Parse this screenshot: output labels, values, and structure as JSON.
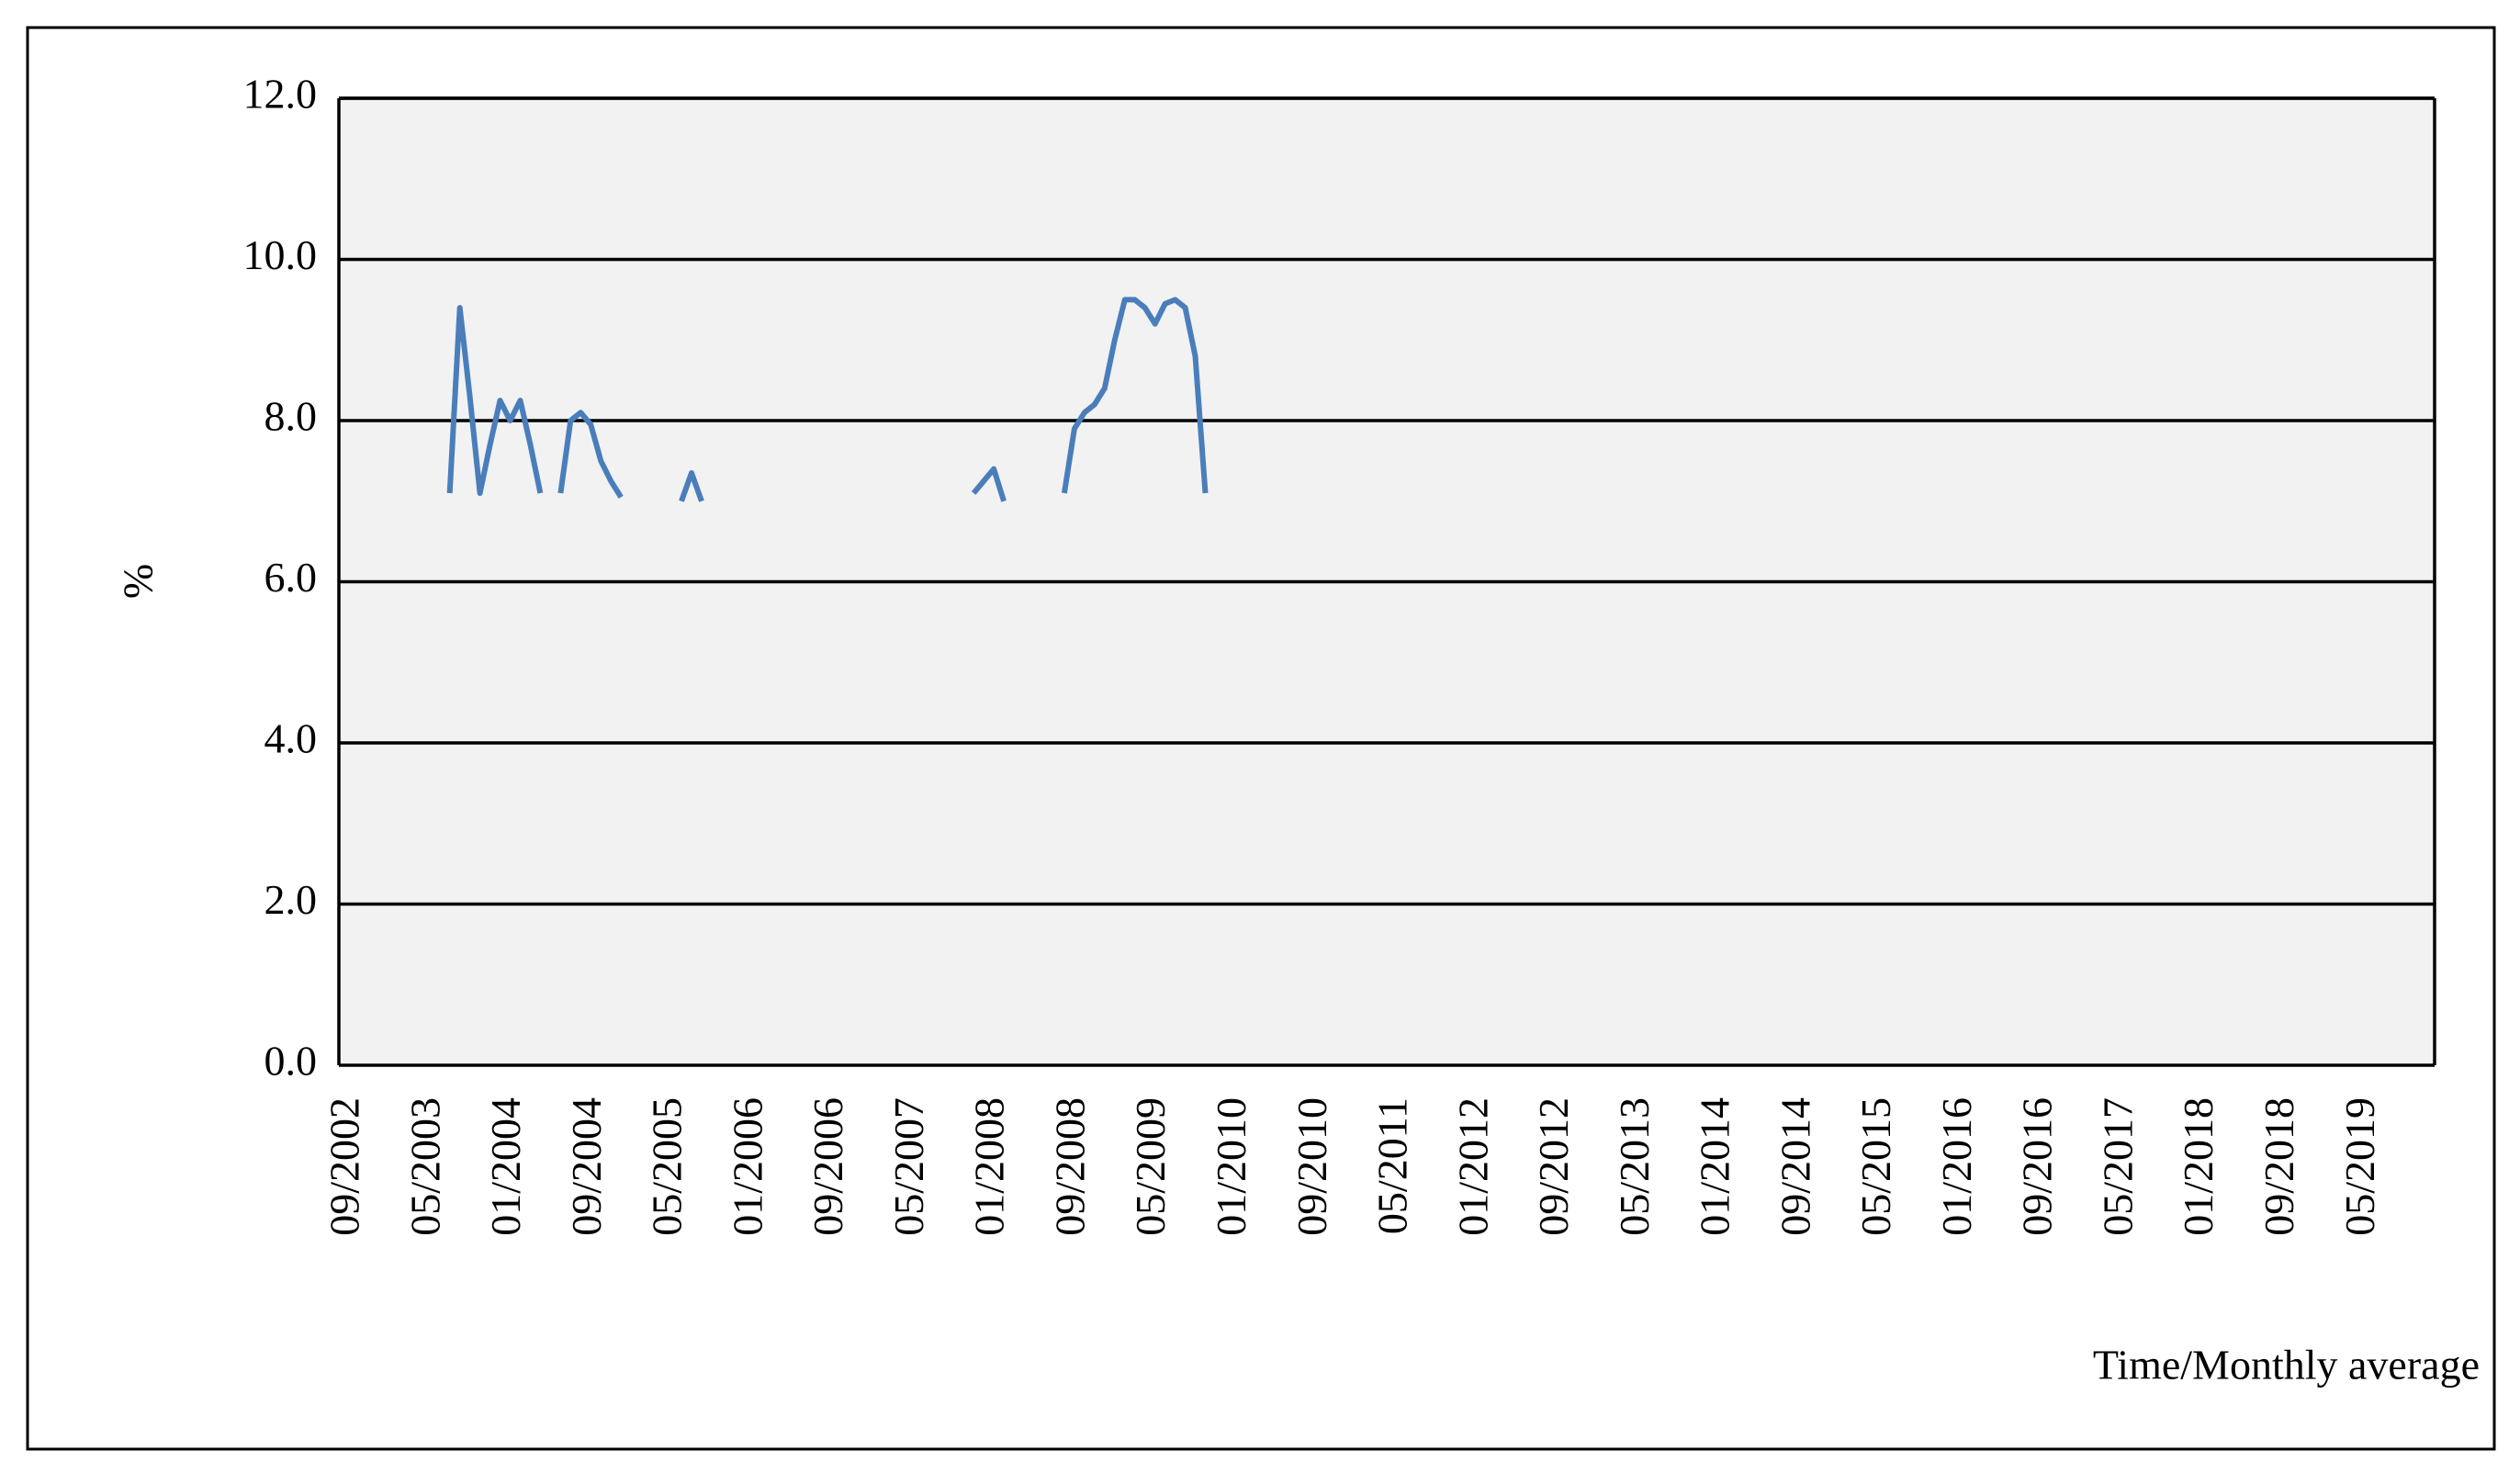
{
  "chart_data": {
    "type": "line",
    "y_label": "%",
    "x_label": "Time/Monthly average",
    "color": "#4a7ebb",
    "grid": true,
    "ylim": [
      0,
      12
    ],
    "yticks": [
      {
        "value": 0,
        "label": "0.0"
      },
      {
        "value": 2,
        "label": "2.0"
      },
      {
        "value": 4,
        "label": "4.0"
      },
      {
        "value": 6,
        "label": "6.0"
      },
      {
        "value": 8,
        "label": "8.0"
      },
      {
        "value": 10,
        "label": "10.0"
      },
      {
        "value": 12,
        "label": "12.0"
      }
    ],
    "categories": [
      "09/2002",
      null,
      null,
      null,
      null,
      null,
      null,
      null,
      "05/2003",
      null,
      null,
      null,
      null,
      null,
      null,
      null,
      "01/2004",
      null,
      null,
      null,
      null,
      null,
      null,
      null,
      "09/2004",
      null,
      null,
      null,
      null,
      null,
      null,
      null,
      "05/2005",
      null,
      null,
      null,
      null,
      null,
      null,
      null,
      "01/2006",
      null,
      null,
      null,
      null,
      null,
      null,
      null,
      "09/2006",
      null,
      null,
      null,
      null,
      null,
      null,
      null,
      "05/2007",
      null,
      null,
      null,
      null,
      null,
      null,
      null,
      "01/2008",
      null,
      null,
      null,
      null,
      null,
      null,
      null,
      "09/2008",
      null,
      null,
      null,
      null,
      null,
      null,
      null,
      "05/2009",
      null,
      null,
      null,
      null,
      null,
      null,
      null,
      "01/2010",
      null,
      null,
      null,
      null,
      null,
      null,
      null,
      "09/2010",
      null,
      null,
      null,
      null,
      null,
      null,
      null,
      "05/2011",
      null,
      null,
      null,
      null,
      null,
      null,
      null,
      "01/2012",
      null,
      null,
      null,
      null,
      null,
      null,
      null,
      "09/2012",
      null,
      null,
      null,
      null,
      null,
      null,
      null,
      "05/2013",
      null,
      null,
      null,
      null,
      null,
      null,
      null,
      "01/2014",
      null,
      null,
      null,
      null,
      null,
      null,
      null,
      "09/2014",
      null,
      null,
      null,
      null,
      null,
      null,
      null,
      "05/2015",
      null,
      null,
      null,
      null,
      null,
      null,
      null,
      "01/2016",
      null,
      null,
      null,
      null,
      null,
      null,
      null,
      "09/2016",
      null,
      null,
      null,
      null,
      null,
      null,
      null,
      "05/2017",
      null,
      null,
      null,
      null,
      null,
      null,
      null,
      "01/2018",
      null,
      null,
      null,
      null,
      null,
      null,
      null,
      "09/2018",
      null,
      null,
      null,
      null,
      null,
      null,
      null,
      "05/2019",
      null,
      null,
      null,
      null,
      null,
      null
    ],
    "values": [
      null,
      null,
      null,
      null,
      null,
      null,
      null,
      null,
      null,
      null,
      7.1,
      9.4,
      8.3,
      7.1,
      7.7,
      8.25,
      8.0,
      8.25,
      7.7,
      7.1,
      null,
      7.1,
      8.0,
      8.1,
      7.95,
      7.5,
      7.25,
      7.05,
      null,
      null,
      null,
      null,
      null,
      7.0,
      7.35,
      7.0,
      null,
      null,
      null,
      null,
      null,
      null,
      null,
      null,
      null,
      null,
      null,
      null,
      null,
      null,
      null,
      null,
      null,
      null,
      null,
      null,
      null,
      null,
      null,
      null,
      null,
      null,
      7.1,
      7.25,
      7.4,
      7.0,
      null,
      null,
      null,
      null,
      null,
      7.1,
      7.9,
      8.1,
      8.2,
      8.4,
      9.0,
      9.5,
      9.5,
      9.4,
      9.2,
      9.45,
      9.5,
      9.4,
      8.8,
      7.1,
      null,
      null,
      null,
      null,
      null,
      null,
      null,
      null,
      null,
      null,
      null,
      null,
      null,
      null,
      null,
      null,
      null,
      null,
      null,
      null,
      null,
      null,
      null,
      null,
      null,
      null,
      null,
      null,
      null,
      null,
      null,
      null,
      null,
      null,
      null,
      null,
      null,
      null,
      null,
      null,
      null,
      null,
      null,
      null,
      null,
      null,
      null,
      null,
      null,
      null,
      null,
      null,
      null,
      null,
      null,
      null,
      null,
      null,
      null,
      null,
      null,
      null,
      null,
      null,
      null,
      null,
      null,
      null,
      null,
      null,
      null,
      null,
      null,
      null,
      null,
      null,
      null,
      null,
      null,
      null,
      null,
      null,
      null,
      null,
      null,
      null,
      null,
      null,
      null,
      null,
      null,
      null,
      null,
      null,
      null,
      null,
      null,
      null,
      null,
      null,
      null,
      null,
      null,
      null,
      null,
      null,
      null,
      null,
      null,
      null,
      null,
      null,
      null,
      null,
      null,
      null,
      null,
      null,
      null,
      null,
      null
    ]
  }
}
